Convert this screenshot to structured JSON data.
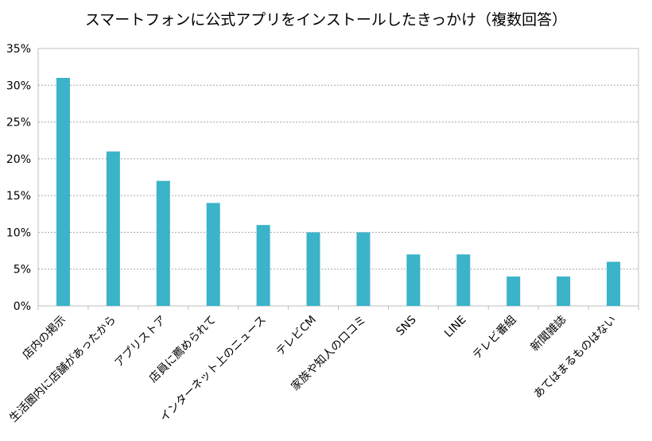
{
  "chart_data": {
    "type": "bar",
    "title": "スマートフォンに公式アプリをインストールしたきっかけ（複数回答）",
    "categories": [
      "店内の掲示",
      "生活圏内に店舗があったから",
      "アプリストア",
      "店員に薦められて",
      "インターネット上のニュース",
      "テレビCM",
      "家族や知人の口コミ",
      "SNS",
      "LINE",
      "テレビ番組",
      "新聞雑誌",
      "あてはまるものはない"
    ],
    "values": [
      31,
      21,
      17,
      14,
      11,
      10,
      10,
      7,
      7,
      4,
      4,
      6
    ],
    "ylim": [
      0,
      35
    ],
    "yticks": [
      0,
      5,
      10,
      15,
      20,
      25,
      30,
      35
    ],
    "ytick_labels": [
      "0%",
      "5%",
      "10%",
      "15%",
      "20%",
      "25%",
      "30%",
      "35%"
    ],
    "xlabel": "",
    "ylabel": "",
    "grid": true,
    "bar_color": "#3bb3c9"
  }
}
